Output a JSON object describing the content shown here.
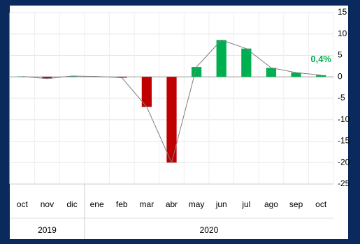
{
  "chart_data": {
    "type": "bar_line",
    "categories": [
      "oct",
      "nov",
      "dic",
      "ene",
      "feb",
      "mar",
      "abr",
      "may",
      "jun",
      "jul",
      "ago",
      "sep",
      "oct"
    ],
    "values": [
      0.1,
      -0.4,
      0.2,
      0.1,
      -0.2,
      -7,
      -20,
      2.3,
      8.6,
      6.6,
      2.1,
      1.0,
      0.4
    ],
    "value_labels": [
      null,
      null,
      null,
      null,
      null,
      null,
      null,
      null,
      null,
      null,
      null,
      null,
      "0,4%"
    ],
    "positive_color": "#00b050",
    "negative_color": "#c00000",
    "line_color": "#7f7f7f",
    "groups": [
      {
        "label": "2019",
        "span": 3
      },
      {
        "label": "2020",
        "span": 10
      }
    ],
    "ylim": [
      -25,
      15
    ],
    "yticks": [
      15,
      10,
      5,
      0,
      -5,
      -10,
      -15,
      -20,
      -25
    ],
    "grid": true
  }
}
